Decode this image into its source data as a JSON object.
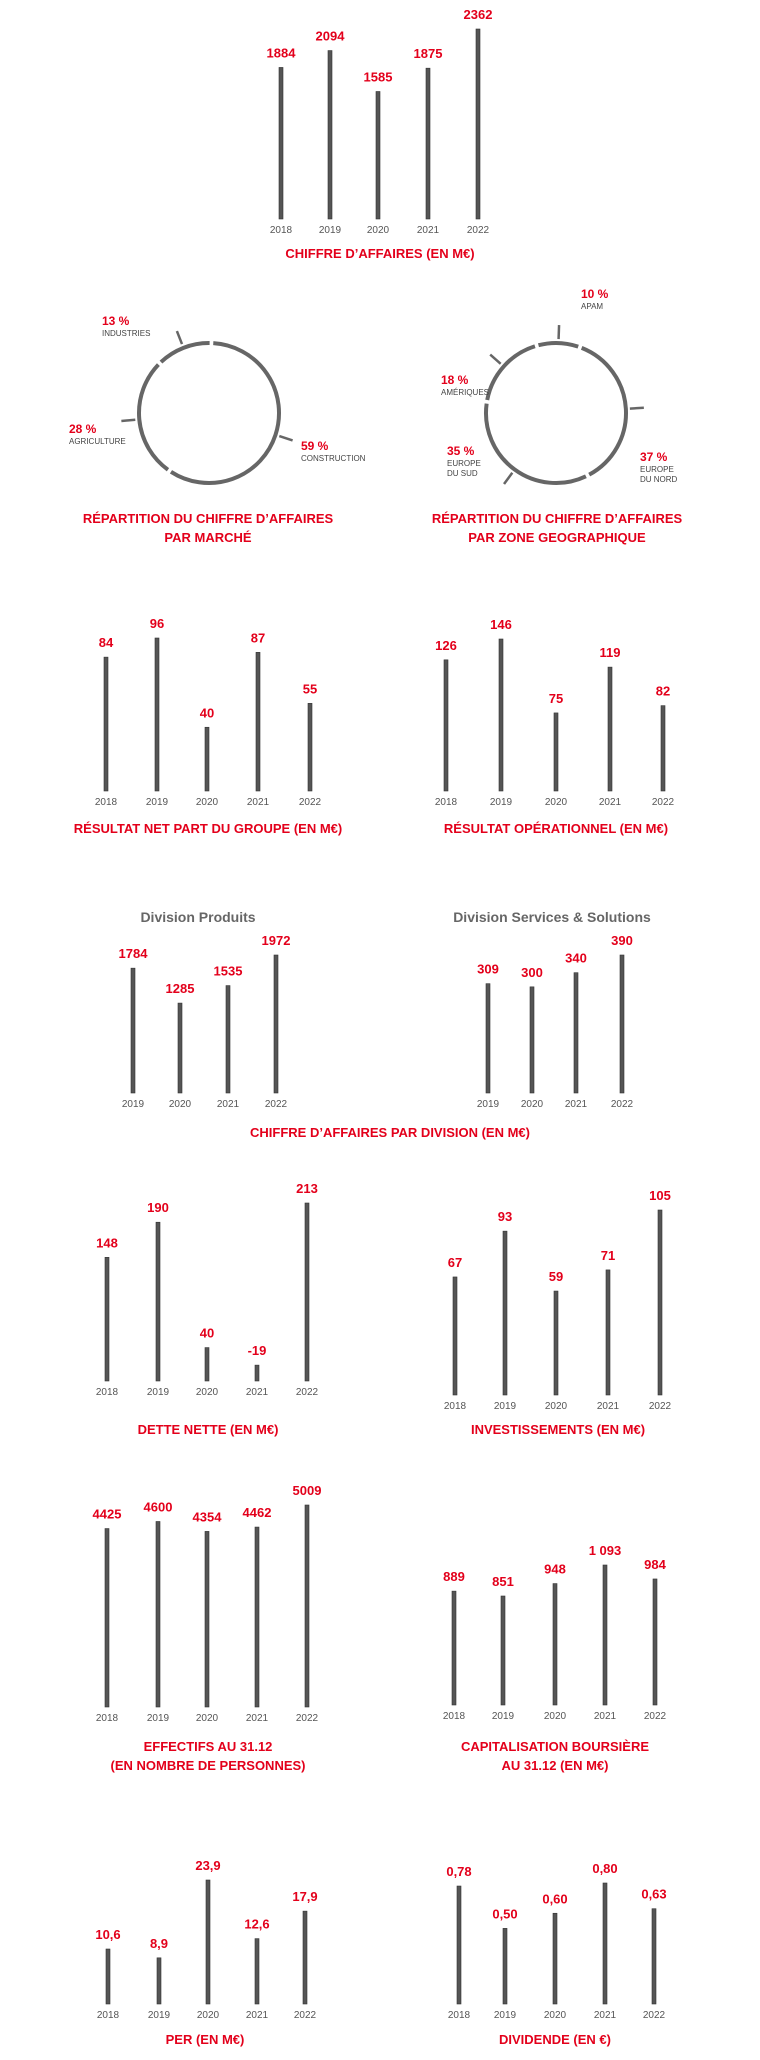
{
  "colors": {
    "accent": "#e3001b",
    "bar": "#555555",
    "ring": "#666666",
    "text_gray": "#555555"
  },
  "chart_data": [
    {
      "id": "ca",
      "type": "bar",
      "title": [
        "CHIFFRE D’AFFAIRES (EN M€)"
      ],
      "categories": [
        "2018",
        "2019",
        "2020",
        "2021",
        "2022"
      ],
      "values": [
        1884,
        2094,
        1585,
        1875,
        2362
      ],
      "labels": [
        "1884",
        "2094",
        "1585",
        "1875",
        "2362"
      ]
    },
    {
      "id": "marche",
      "type": "pie",
      "title": [
        "RÉPARTITION DU CHIFFRE D’AFFAIRES",
        "PAR MARCHÉ"
      ],
      "slices": [
        {
          "value": 59,
          "label": "59 %",
          "name": [
            "CONSTRUCTION"
          ]
        },
        {
          "value": 28,
          "label": "28 %",
          "name": [
            "AGRICULTURE"
          ]
        },
        {
          "value": 13,
          "label": "13 %",
          "name": [
            "INDUSTRIES"
          ]
        }
      ]
    },
    {
      "id": "zone",
      "type": "pie",
      "title": [
        "RÉPARTITION DU CHIFFRE D’AFFAIRES",
        "PAR ZONE GEOGRAPHIQUE"
      ],
      "slices": [
        {
          "value": 37,
          "label": "37 %",
          "name": [
            "EUROPE",
            "DU NORD"
          ]
        },
        {
          "value": 35,
          "label": "35 %",
          "name": [
            "EUROPE",
            "DU SUD"
          ]
        },
        {
          "value": 18,
          "label": "18 %",
          "name": [
            "AMÉRIQUES"
          ]
        },
        {
          "value": 10,
          "label": "10 %",
          "name": [
            "APAM"
          ]
        }
      ]
    },
    {
      "id": "rn",
      "type": "bar",
      "title": [
        "RÉSULTAT NET PART DU GROUPE (EN M€)"
      ],
      "categories": [
        "2018",
        "2019",
        "2020",
        "2021",
        "2022"
      ],
      "values": [
        84,
        96,
        40,
        87,
        55
      ],
      "labels": [
        "84",
        "96",
        "40",
        "87",
        "55"
      ]
    },
    {
      "id": "ro",
      "type": "bar",
      "title": [
        "RÉSULTAT OPÉRATIONNEL (EN M€)"
      ],
      "categories": [
        "2018",
        "2019",
        "2020",
        "2021",
        "2022"
      ],
      "values": [
        126,
        146,
        75,
        119,
        82
      ],
      "labels": [
        "126",
        "146",
        "75",
        "119",
        "82"
      ]
    },
    {
      "id": "divp",
      "type": "bar",
      "subtitle": "Division Produits",
      "categories": [
        "2019",
        "2020",
        "2021",
        "2022"
      ],
      "values": [
        1784,
        1285,
        1535,
        1972
      ],
      "labels": [
        "1784",
        "1285",
        "1535",
        "1972"
      ]
    },
    {
      "id": "divs",
      "type": "bar",
      "subtitle": "Division Services & Solutions",
      "categories": [
        "2019",
        "2020",
        "2021",
        "2022"
      ],
      "values": [
        309,
        300,
        340,
        390
      ],
      "labels": [
        "309",
        "300",
        "340",
        "390"
      ]
    },
    {
      "id": "dette",
      "type": "bar",
      "title": [
        "DETTE NETTE (EN M€)"
      ],
      "categories": [
        "2018",
        "2019",
        "2020",
        "2021",
        "2022"
      ],
      "values": [
        148,
        190,
        40,
        -19,
        213
      ],
      "labels": [
        "148",
        "190",
        "40",
        "-19",
        "213"
      ]
    },
    {
      "id": "invest",
      "type": "bar",
      "title": [
        "INVESTISSEMENTS (EN M€)"
      ],
      "categories": [
        "2018",
        "2019",
        "2020",
        "2021",
        "2022"
      ],
      "values": [
        67,
        93,
        59,
        71,
        105
      ],
      "labels": [
        "67",
        "93",
        "59",
        "71",
        "105"
      ]
    },
    {
      "id": "effectifs",
      "type": "bar",
      "title": [
        "EFFECTIFS AU 31.12",
        "(EN NOMBRE DE PERSONNES)"
      ],
      "categories": [
        "2018",
        "2019",
        "2020",
        "2021",
        "2022"
      ],
      "values": [
        4425,
        4600,
        4354,
        4462,
        5009
      ],
      "labels": [
        "4425",
        "4600",
        "4354",
        "4462",
        "5009"
      ]
    },
    {
      "id": "capi",
      "type": "bar",
      "title": [
        "CAPITALISATION BOURSIÈRE",
        "AU 31.12 (EN M€)"
      ],
      "categories": [
        "2018",
        "2019",
        "2020",
        "2021",
        "2022"
      ],
      "values": [
        889,
        851,
        948,
        1093,
        984
      ],
      "labels": [
        "889",
        "851",
        "948",
        "1 093",
        "984"
      ]
    },
    {
      "id": "per",
      "type": "bar",
      "title": [
        "PER (EN M€)"
      ],
      "categories": [
        "2018",
        "2019",
        "2020",
        "2021",
        "2022"
      ],
      "values": [
        10.6,
        8.9,
        23.9,
        12.6,
        17.9
      ],
      "labels": [
        "10,6",
        "8,9",
        "23,9",
        "12,6",
        "17,9"
      ]
    },
    {
      "id": "dividende",
      "type": "bar",
      "title": [
        "DIVIDENDE (EN €)"
      ],
      "categories": [
        "2018",
        "2019",
        "2020",
        "2021",
        "2022"
      ],
      "values": [
        0.78,
        0.5,
        0.6,
        0.8,
        0.63
      ],
      "labels": [
        "0,78",
        "0,50",
        "0,60",
        "0,80",
        "0,63"
      ]
    }
  ],
  "shared_title": [
    "CHIFFRE D’AFFAIRES PAR DIVISION (EN M€)"
  ]
}
